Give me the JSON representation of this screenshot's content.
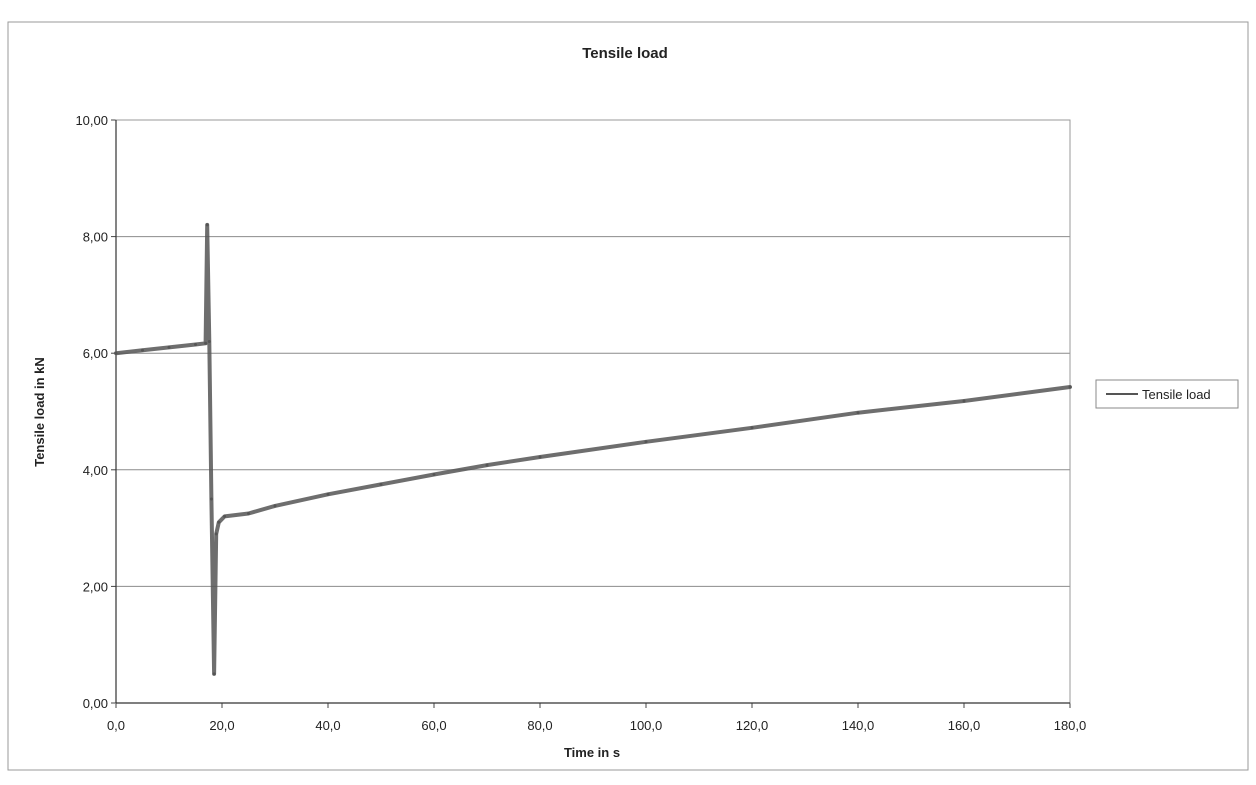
{
  "chart_data": {
    "type": "line",
    "title": "Tensile load",
    "xlabel": "Time in s",
    "ylabel": "Tensile load in kN",
    "xlim": [
      0,
      180
    ],
    "ylim": [
      0,
      10
    ],
    "x_ticks": [
      "0,0",
      "20,0",
      "40,0",
      "60,0",
      "80,0",
      "100,0",
      "120,0",
      "140,0",
      "160,0",
      "180,0"
    ],
    "y_ticks": [
      "0,00",
      "2,00",
      "4,00",
      "6,00",
      "8,00",
      "10,00"
    ],
    "grid": "horizontal",
    "legend_position": "right",
    "series": [
      {
        "name": "Tensile load",
        "color": "#555555",
        "points": [
          [
            0.0,
            6.0
          ],
          [
            5.0,
            6.05
          ],
          [
            10.0,
            6.1
          ],
          [
            15.0,
            6.15
          ],
          [
            16.9,
            6.17
          ],
          [
            17.2,
            8.2
          ],
          [
            17.6,
            6.2
          ],
          [
            18.0,
            3.5
          ],
          [
            18.5,
            0.5
          ],
          [
            18.9,
            2.9
          ],
          [
            19.4,
            3.1
          ],
          [
            20.5,
            3.2
          ],
          [
            25.0,
            3.25
          ],
          [
            30.0,
            3.38
          ],
          [
            40.0,
            3.58
          ],
          [
            50.0,
            3.75
          ],
          [
            60.0,
            3.92
          ],
          [
            70.0,
            4.08
          ],
          [
            80.0,
            4.22
          ],
          [
            100.0,
            4.48
          ],
          [
            120.0,
            4.72
          ],
          [
            140.0,
            4.98
          ],
          [
            160.0,
            5.18
          ],
          [
            180.0,
            5.42
          ]
        ]
      }
    ]
  }
}
